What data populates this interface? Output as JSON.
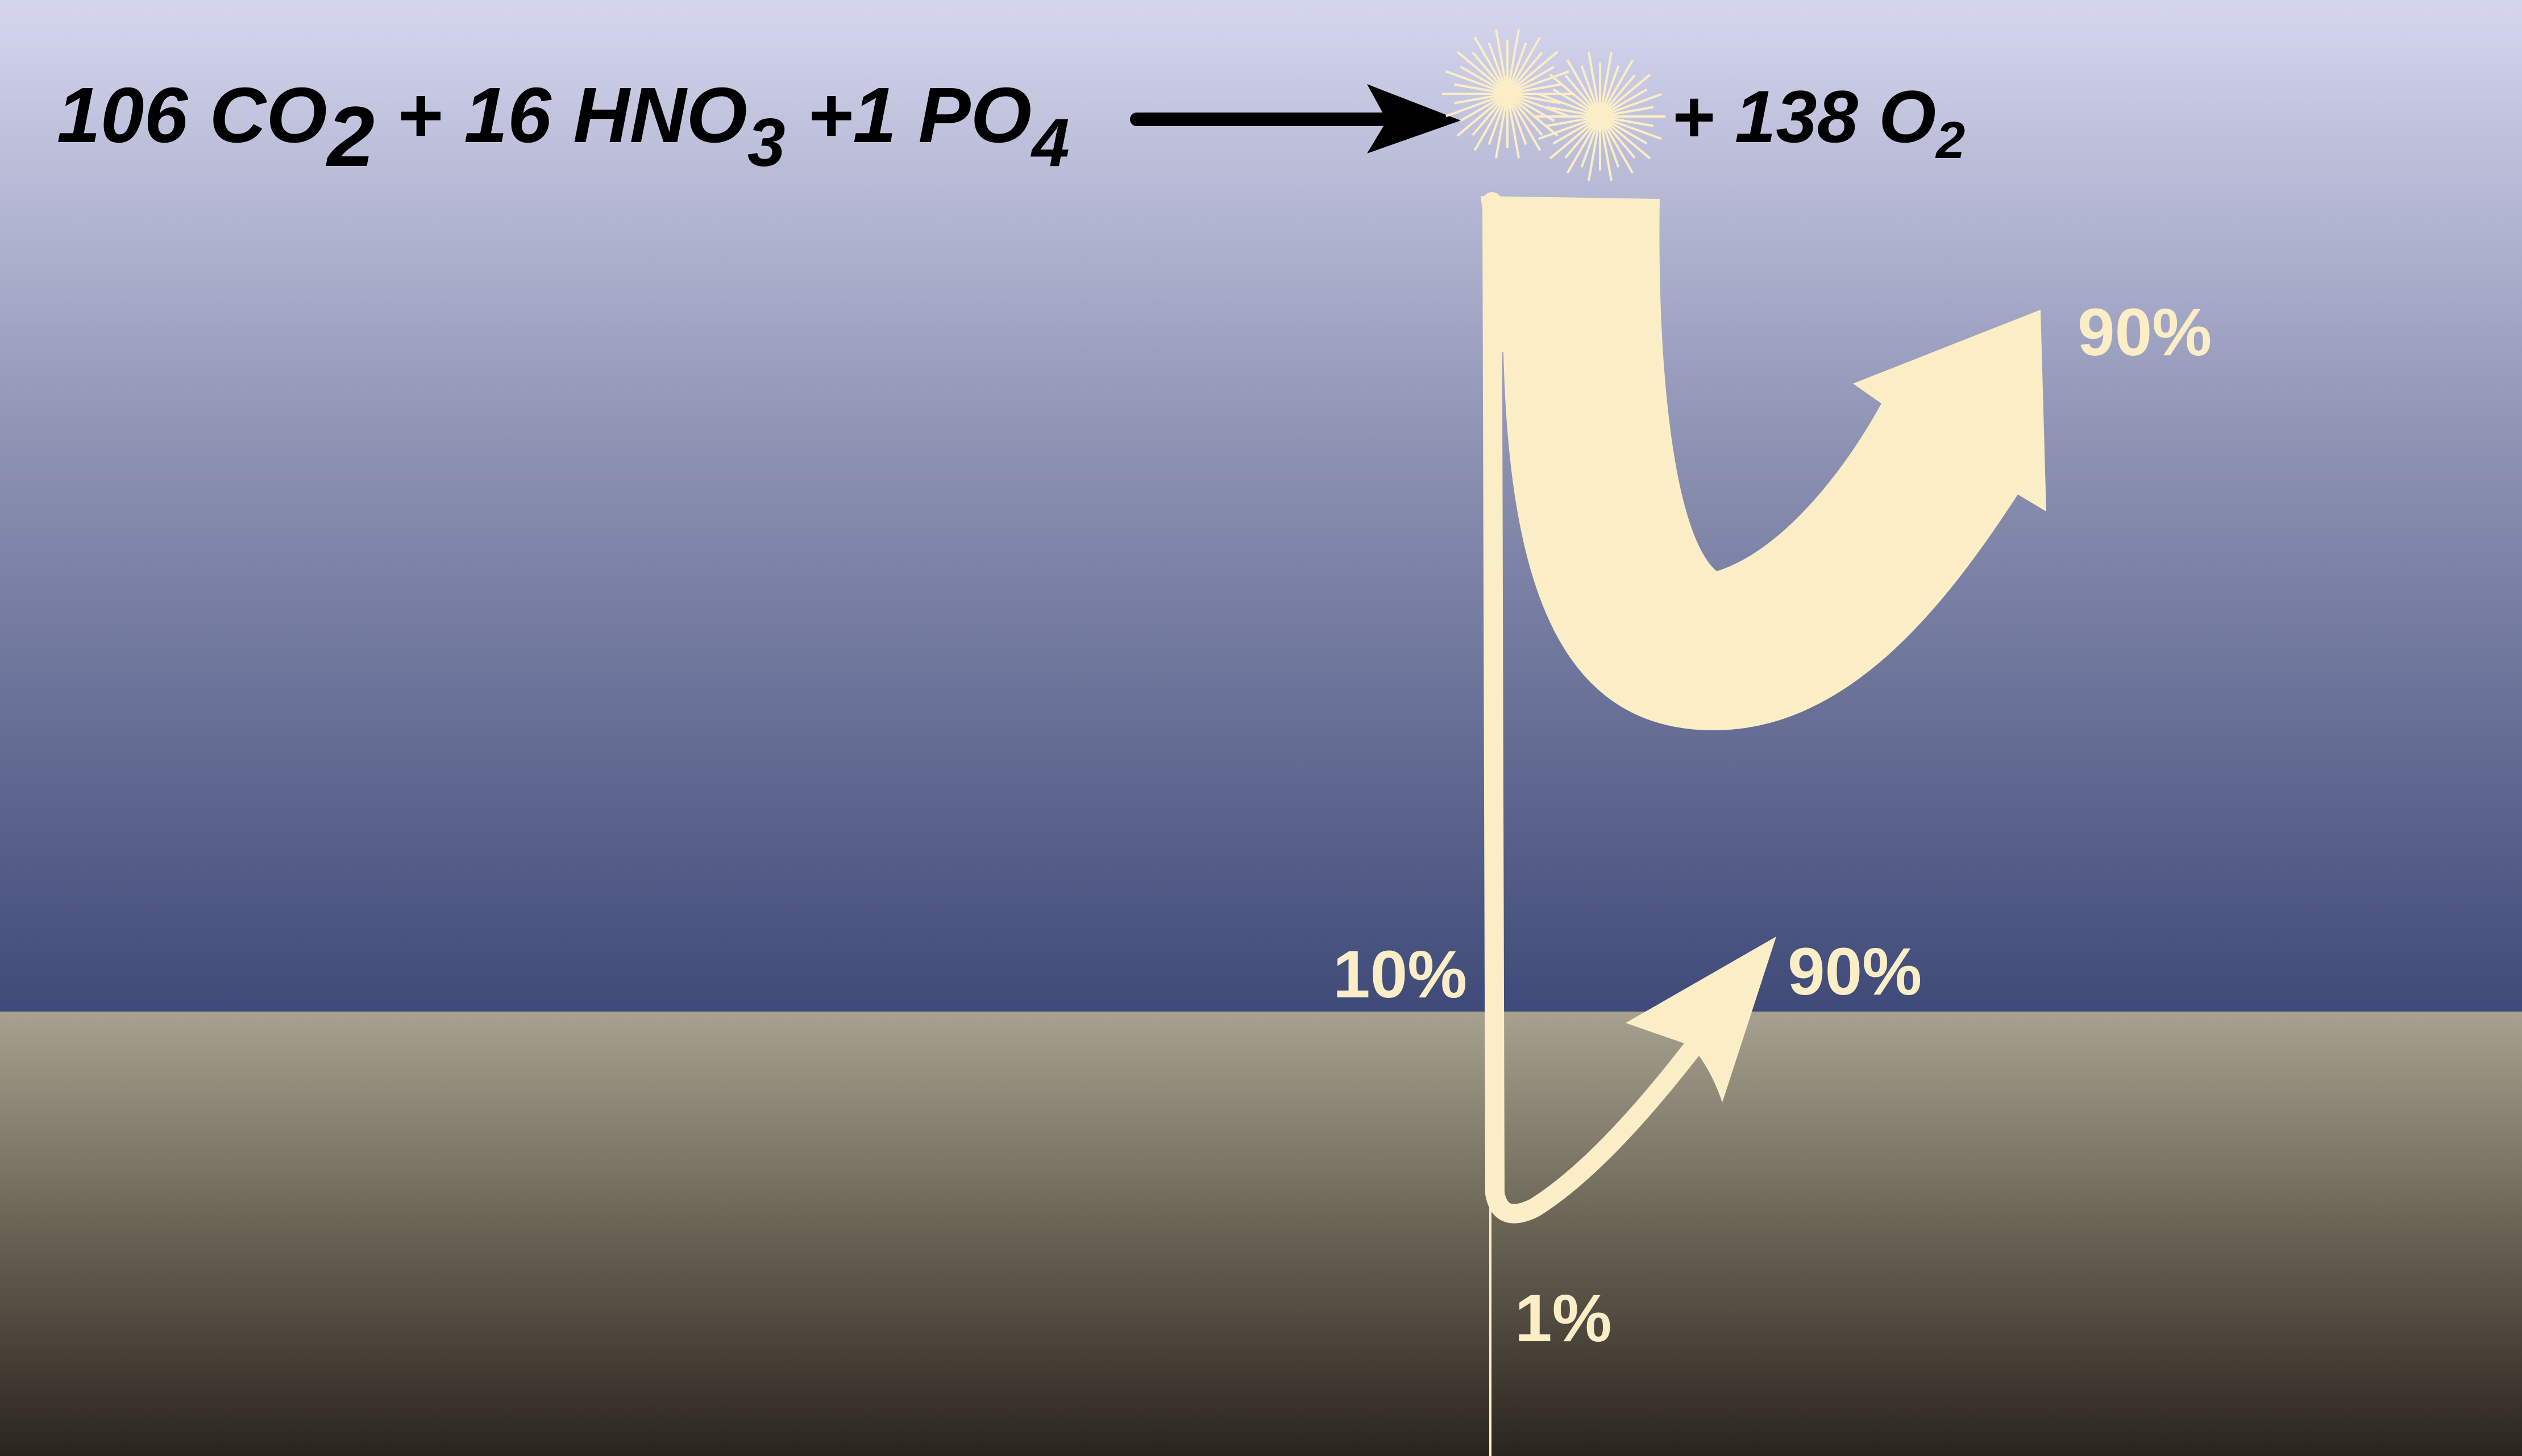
{
  "equation": {
    "reactants": {
      "co2_coef": "106 CO",
      "co2_sub": "2",
      "plus_hno3": " + 16 HNO",
      "hno3_sub": "3",
      "plus_po4": " +1 PO",
      "po4_sub": "4"
    },
    "products": {
      "o2_text": "+ 138 O",
      "o2_sub": "2"
    }
  },
  "labels": {
    "surface_return": "90%",
    "export_from_surface": "10%",
    "seafloor_return": "90%",
    "burial": "1%"
  },
  "colors": {
    "sky_top": "#d5d6ee",
    "ocean_deep": "#3f4a78",
    "sediment_top": "#a7a28f",
    "sediment_bottom": "#2a241f",
    "flow": "#fbeec6",
    "arrow": "#000000",
    "text": "#000000"
  },
  "icons": {
    "reaction_arrow": "right-arrow-icon",
    "sunlight": "sun-burst-icon"
  }
}
